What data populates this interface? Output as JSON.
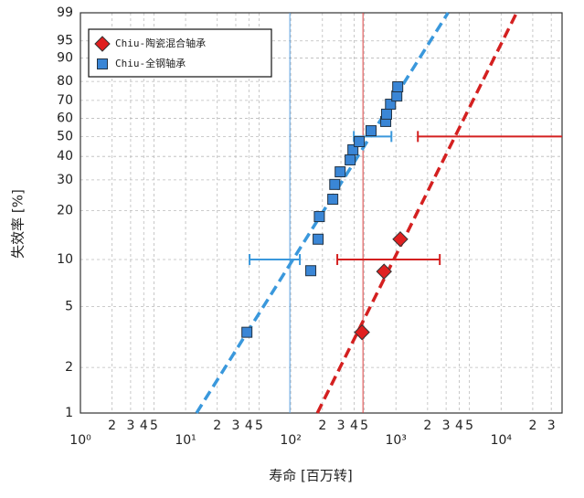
{
  "chart_data": {
    "type": "scatter",
    "x_scale": "log",
    "y_scale": "weibull",
    "x_label": "寿命 [百万转]",
    "y_label": "失效率 [%]",
    "xlim": [
      1,
      38000
    ],
    "ylim": [
      1,
      99
    ],
    "grid": true,
    "legend": "upper left",
    "xticks": [
      {
        "value": 1,
        "label": "10⁰"
      },
      2,
      3,
      4,
      5,
      {
        "value": 10,
        "label": "10¹"
      },
      {
        "value": 20,
        "label": "2"
      },
      {
        "value": 30,
        "label": "3"
      },
      {
        "value": 40,
        "label": "4"
      },
      {
        "value": 50,
        "label": "5"
      },
      {
        "value": 100,
        "label": "10²"
      },
      {
        "value": 200,
        "label": "2"
      },
      {
        "value": 300,
        "label": "3"
      },
      {
        "value": 400,
        "label": "4"
      },
      {
        "value": 500,
        "label": "5"
      },
      {
        "value": 1000,
        "label": "10³"
      },
      {
        "value": 2000,
        "label": "2"
      },
      {
        "value": 3000,
        "label": "3"
      },
      {
        "value": 4000,
        "label": "4"
      },
      {
        "value": 5000,
        "label": "5"
      },
      {
        "value": 10000,
        "label": "10⁴"
      },
      {
        "value": 20000,
        "label": "2"
      },
      {
        "value": 30000,
        "label": "3"
      }
    ],
    "yticks": [
      1,
      2,
      5,
      10,
      20,
      30,
      40,
      50,
      60,
      70,
      80,
      90,
      95,
      99
    ],
    "series": [
      {
        "name": "Chiu-陶瓷混合轴承",
        "color": "#e02020",
        "marker": "diamond",
        "x": [
          476,
          771,
          1100
        ],
        "values": [
          3.4,
          8.4,
          13.4
        ]
      },
      {
        "name": "Chiu-全钢轴承",
        "color": "#3a86d6",
        "marker": "square",
        "x": [
          38.3,
          155,
          182,
          187,
          251,
          262,
          295,
          367,
          390,
          448,
          580,
          800,
          815,
          888,
          1020,
          1040
        ],
        "values": [
          3.4,
          8.5,
          13.4,
          18.4,
          23.3,
          28.3,
          33.2,
          38.4,
          43.2,
          47.3,
          53.1,
          58.2,
          62.3,
          67.9,
          72.4,
          77.3
        ]
      }
    ],
    "fit_lines": [
      {
        "color": "#d42020",
        "x": [
          179,
          14050
        ],
        "values": [
          1,
          99
        ]
      },
      {
        "color": "#3a98dc",
        "x": [
          12.7,
          3130
        ],
        "values": [
          1,
          99
        ]
      }
    ],
    "reference_lines": [
      {
        "color": "#5aa0e0",
        "x": 98
      },
      {
        "color": "#d84040",
        "x": 486
      }
    ],
    "intervals": [
      {
        "color": "#3a98dc",
        "y": 10,
        "x": [
          40.6,
          122
        ]
      },
      {
        "color": "#3a98dc",
        "y": 50,
        "x": [
          398,
          906
        ]
      },
      {
        "color": "#d42020",
        "y": 10,
        "x": [
          277,
          2612
        ]
      },
      {
        "color": "#d42020",
        "y": 50,
        "x": [
          1617,
          38000
        ]
      }
    ]
  }
}
